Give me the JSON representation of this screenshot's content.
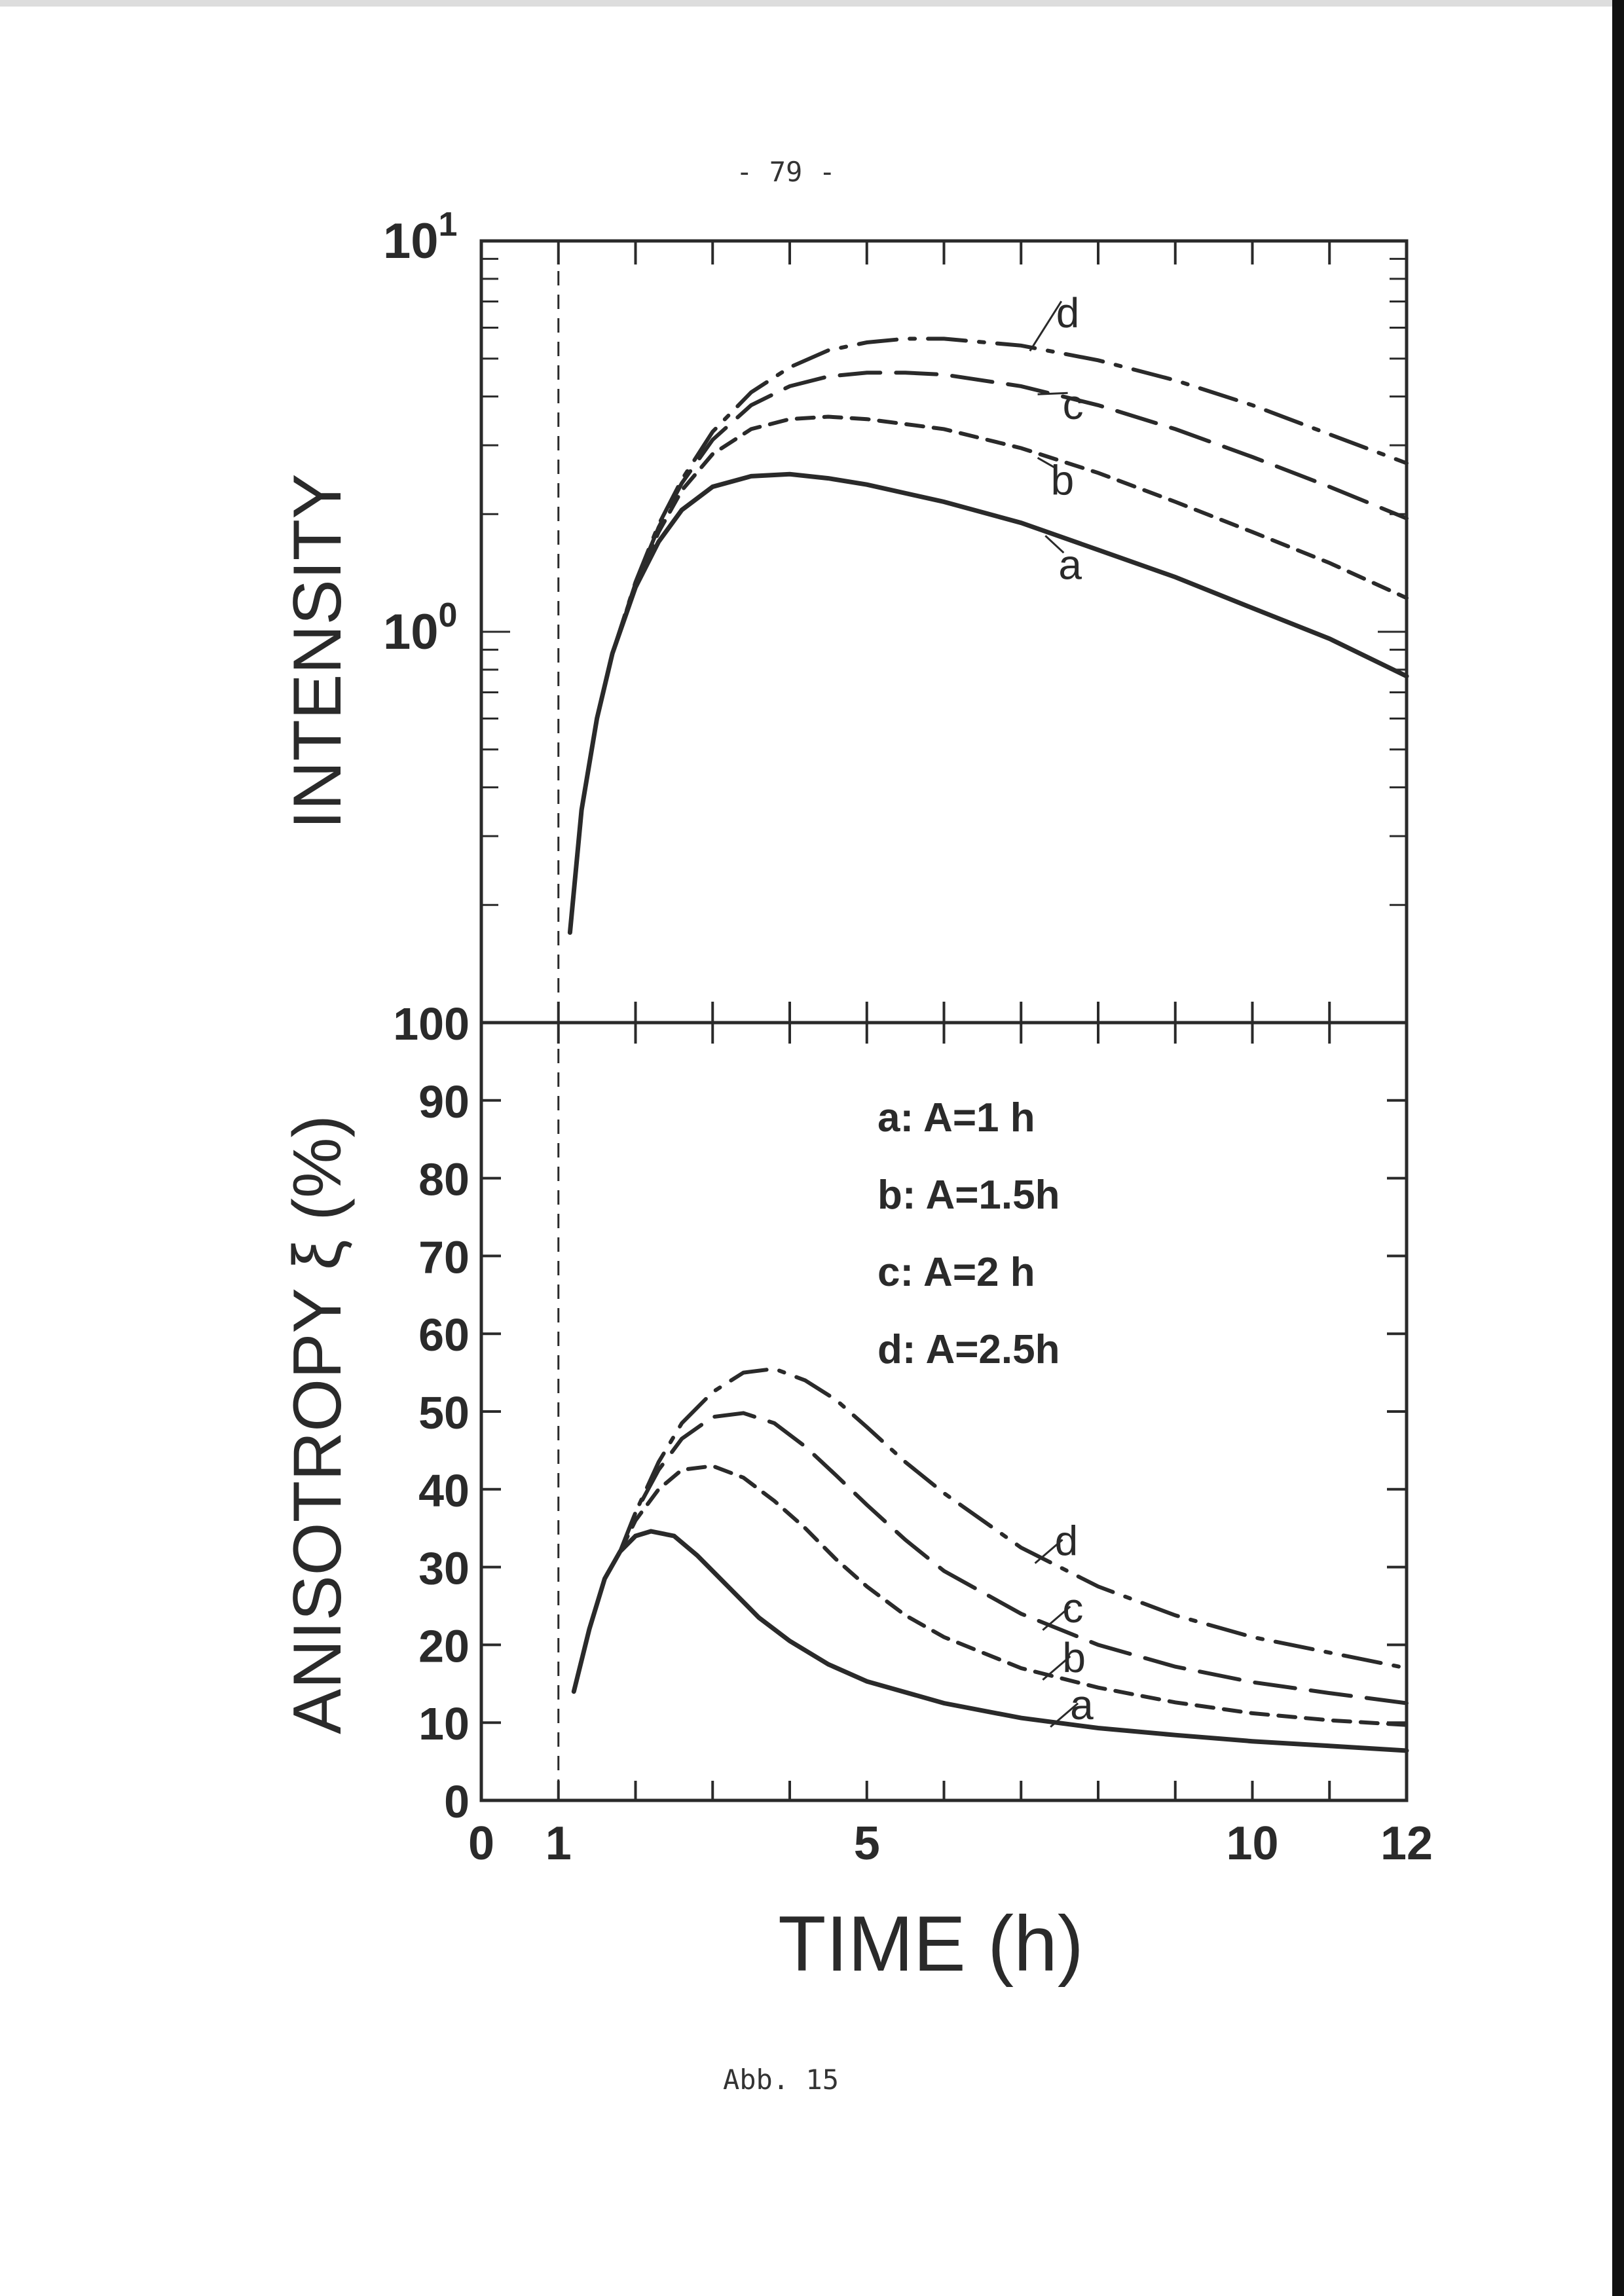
{
  "page": {
    "number": "- 79 -",
    "caption": "Abb. 15"
  },
  "colors": {
    "ink": "#2a2a2a",
    "paper": "#ffffff"
  },
  "chart_data": [
    {
      "type": "line",
      "panel": "top",
      "ylabel": "INTENSITY",
      "yscale": "log",
      "ylim": [
        0.1,
        10
      ],
      "y_ticklabels": [
        "10^0",
        "10^1"
      ],
      "xlim": [
        0,
        12
      ],
      "marker_line_x": 1,
      "series": [
        {
          "name": "a",
          "style": "solid",
          "x": [
            1.15,
            1.3,
            1.5,
            1.7,
            2,
            2.3,
            2.6,
            3,
            3.5,
            4,
            4.5,
            5,
            6,
            7,
            8,
            9,
            10,
            11,
            12
          ],
          "y": [
            0.17,
            0.35,
            0.6,
            0.88,
            1.3,
            1.7,
            2.05,
            2.35,
            2.5,
            2.53,
            2.47,
            2.38,
            2.15,
            1.9,
            1.62,
            1.38,
            1.15,
            0.96,
            0.77
          ]
        },
        {
          "name": "b",
          "style": "dashed",
          "x": [
            1.5,
            1.7,
            2,
            2.3,
            2.6,
            3,
            3.5,
            4,
            4.5,
            5,
            6,
            7,
            8,
            9,
            10,
            11,
            12
          ],
          "y": [
            0.6,
            0.88,
            1.32,
            1.8,
            2.3,
            2.85,
            3.3,
            3.5,
            3.55,
            3.5,
            3.3,
            2.95,
            2.55,
            2.15,
            1.8,
            1.5,
            1.22
          ]
        },
        {
          "name": "c",
          "style": "long-dash",
          "x": [
            1.5,
            1.7,
            2,
            2.3,
            2.6,
            3,
            3.5,
            4,
            4.5,
            5,
            5.5,
            6,
            7,
            8,
            9,
            10,
            11,
            12
          ],
          "y": [
            0.6,
            0.88,
            1.33,
            1.85,
            2.4,
            3.1,
            3.8,
            4.25,
            4.5,
            4.6,
            4.6,
            4.55,
            4.25,
            3.8,
            3.3,
            2.8,
            2.35,
            1.95
          ]
        },
        {
          "name": "d",
          "style": "dash-dot",
          "x": [
            1.5,
            1.7,
            2,
            2.3,
            2.6,
            3,
            3.5,
            4,
            4.5,
            5,
            5.5,
            6,
            7,
            8,
            9,
            10,
            11,
            12
          ],
          "y": [
            0.6,
            0.88,
            1.34,
            1.88,
            2.45,
            3.25,
            4.1,
            4.75,
            5.25,
            5.5,
            5.62,
            5.62,
            5.4,
            4.95,
            4.4,
            3.8,
            3.2,
            2.7
          ]
        }
      ]
    },
    {
      "type": "line",
      "panel": "bottom",
      "ylabel": "ANISOTROPY ξ (%)",
      "xlabel": "TIME (h)",
      "ylim": [
        0,
        100
      ],
      "y_ticks": [
        0,
        10,
        20,
        30,
        40,
        50,
        60,
        70,
        80,
        90,
        100
      ],
      "xlim": [
        0,
        12
      ],
      "x_ticklabels": [
        {
          "value": 0,
          "label": "0"
        },
        {
          "value": 1,
          "label": "1"
        },
        {
          "value": 5,
          "label": "5"
        },
        {
          "value": 10,
          "label": "10"
        },
        {
          "value": 12,
          "label": "12"
        }
      ],
      "marker_line_x": 1,
      "legend": [
        "a:  A=1  h",
        "b:  A=1.5h",
        "c:  A=2  h",
        "d:  A=2.5h"
      ],
      "series": [
        {
          "name": "a",
          "style": "solid",
          "x": [
            1.2,
            1.4,
            1.6,
            1.8,
            2,
            2.2,
            2.5,
            2.8,
            3.2,
            3.6,
            4,
            4.5,
            5,
            6,
            7,
            8,
            9,
            10,
            11,
            12
          ],
          "y": [
            14,
            22,
            28.5,
            32,
            34,
            34.6,
            34,
            31.5,
            27.5,
            23.5,
            20.5,
            17.5,
            15.3,
            12.5,
            10.6,
            9.3,
            8.4,
            7.6,
            7,
            6.4
          ]
        },
        {
          "name": "b",
          "style": "dashed",
          "x": [
            1.8,
            2,
            2.3,
            2.6,
            3,
            3.4,
            3.8,
            4.2,
            4.6,
            5,
            5.5,
            6,
            7,
            8,
            9,
            10,
            11,
            12
          ],
          "y": [
            32,
            36,
            40,
            42.5,
            43,
            41.5,
            38.5,
            35,
            31,
            27.5,
            23.8,
            21,
            17,
            14.5,
            12.6,
            11.2,
            10.3,
            9.7
          ]
        },
        {
          "name": "c",
          "style": "long-dash",
          "x": [
            1.8,
            2,
            2.3,
            2.6,
            3,
            3.4,
            3.8,
            4.2,
            4.6,
            5,
            5.5,
            6,
            7,
            8,
            9,
            10,
            11,
            12
          ],
          "y": [
            32,
            37,
            42.5,
            46.5,
            49.3,
            49.8,
            48.5,
            45.5,
            41.8,
            38,
            33.5,
            29.5,
            24,
            20,
            17.2,
            15.2,
            13.8,
            12.5
          ]
        },
        {
          "name": "d",
          "style": "dash-dot",
          "x": [
            1.8,
            2,
            2.3,
            2.6,
            3,
            3.4,
            3.8,
            4.2,
            4.6,
            5,
            5.5,
            6,
            7,
            8,
            9,
            10,
            11,
            12
          ],
          "y": [
            32,
            37,
            43.5,
            48.5,
            52.5,
            55,
            55.5,
            54,
            51.5,
            48,
            43.5,
            39.5,
            32.5,
            27.5,
            23.8,
            21,
            19,
            17
          ]
        }
      ]
    }
  ],
  "annotations": {
    "top_labels": [
      {
        "text": "d",
        "series": "d",
        "at_x": 7.2
      },
      {
        "text": "c",
        "series": "c",
        "at_x": 7.3
      },
      {
        "text": "b",
        "series": "b",
        "at_x": 7.3
      },
      {
        "text": "a",
        "series": "a",
        "at_x": 7.4
      }
    ],
    "bottom_labels": [
      {
        "text": "d",
        "series": "d",
        "at_x": 7.3
      },
      {
        "text": "c",
        "series": "c",
        "at_x": 7.4
      },
      {
        "text": "b",
        "series": "b",
        "at_x": 7.4
      },
      {
        "text": "a",
        "series": "a",
        "at_x": 7.5
      }
    ]
  }
}
